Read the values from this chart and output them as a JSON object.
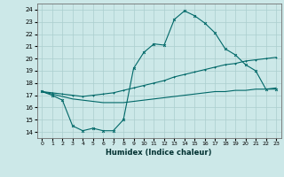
{
  "xlabel": "Humidex (Indice chaleur)",
  "ylabel": "",
  "bg_color": "#cce8e8",
  "grid_color": "#aacece",
  "line_color": "#006868",
  "xlim": [
    -0.5,
    23.5
  ],
  "ylim": [
    13.5,
    24.5
  ],
  "xticks": [
    0,
    1,
    2,
    3,
    4,
    5,
    6,
    7,
    8,
    9,
    10,
    11,
    12,
    13,
    14,
    15,
    16,
    17,
    18,
    19,
    20,
    21,
    22,
    23
  ],
  "yticks": [
    14,
    15,
    16,
    17,
    18,
    19,
    20,
    21,
    22,
    23,
    24
  ],
  "curve1_x": [
    0,
    1,
    2,
    3,
    4,
    5,
    6,
    7,
    8,
    9,
    10,
    11,
    12,
    13,
    14,
    15,
    16,
    17,
    18,
    19,
    20,
    21,
    22,
    23
  ],
  "curve1_y": [
    17.3,
    17.0,
    16.6,
    14.5,
    14.1,
    14.3,
    14.1,
    14.1,
    15.0,
    19.2,
    20.5,
    21.2,
    21.1,
    23.2,
    23.9,
    23.5,
    22.9,
    22.1,
    20.8,
    20.3,
    19.5,
    19.0,
    17.5,
    17.5
  ],
  "curve2_x": [
    0,
    1,
    2,
    3,
    4,
    5,
    6,
    7,
    8,
    9,
    10,
    11,
    12,
    13,
    14,
    15,
    16,
    17,
    18,
    19,
    20,
    21,
    22,
    23
  ],
  "curve2_y": [
    17.3,
    17.2,
    17.1,
    17.0,
    16.9,
    17.0,
    17.1,
    17.2,
    17.4,
    17.6,
    17.8,
    18.0,
    18.2,
    18.5,
    18.7,
    18.9,
    19.1,
    19.3,
    19.5,
    19.6,
    19.8,
    19.9,
    20.0,
    20.1
  ],
  "curve3_x": [
    0,
    1,
    2,
    3,
    4,
    5,
    6,
    7,
    8,
    9,
    10,
    11,
    12,
    13,
    14,
    15,
    16,
    17,
    18,
    19,
    20,
    21,
    22,
    23
  ],
  "curve3_y": [
    17.3,
    17.1,
    16.9,
    16.7,
    16.6,
    16.5,
    16.4,
    16.4,
    16.4,
    16.5,
    16.6,
    16.7,
    16.8,
    16.9,
    17.0,
    17.1,
    17.2,
    17.3,
    17.3,
    17.4,
    17.4,
    17.5,
    17.5,
    17.6
  ]
}
